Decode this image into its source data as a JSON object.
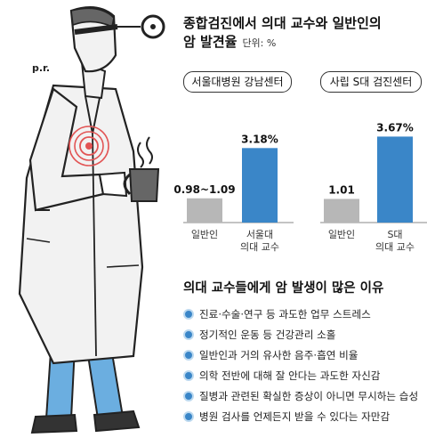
{
  "title_line1": "종합검진에서 의대 교수와 일반인의",
  "title_line2": "암 발견율",
  "unit": "단위: %",
  "illustration_text": "p.r.",
  "chart_data": [
    {
      "type": "bar",
      "title": "서울대병원 강남센터",
      "categories": [
        "일반인",
        "서울대 의대 교수"
      ],
      "category_lines": [
        [
          "일반인"
        ],
        [
          "서울대",
          "의대 교수"
        ]
      ],
      "values": [
        1.035,
        3.18
      ],
      "value_labels": [
        "0.98~1.09",
        "3.18%"
      ],
      "ylim": [
        0,
        3.8
      ],
      "colors": [
        "#b7b7b7",
        "#3a86c8"
      ]
    },
    {
      "type": "bar",
      "title": "사립 S대 검진센터",
      "categories": [
        "일반인",
        "S대 의대 교수"
      ],
      "category_lines": [
        [
          "일반인"
        ],
        [
          "S대",
          "의대 교수"
        ]
      ],
      "values": [
        1.01,
        3.67
      ],
      "value_labels": [
        "1.01",
        "3.67%"
      ],
      "ylim": [
        0,
        3.8
      ],
      "colors": [
        "#b7b7b7",
        "#3a86c8"
      ]
    }
  ],
  "reasons": {
    "title": "의대 교수들에게 암 발생이 많은 이유",
    "items": [
      "진료·수술·연구 등 과도한 업무 스트레스",
      "정기적인 운동 등 건강관리 소홀",
      "일반인과 거의 유사한 음주·흡연 비율",
      "의학 전반에 대해 잘 안다는 과도한 자신감",
      "질병과 관련된 확실한 증상이 아니면 무시하는 습성",
      "병원 검사를 언제든지 받을 수 있다는 자만감"
    ]
  }
}
